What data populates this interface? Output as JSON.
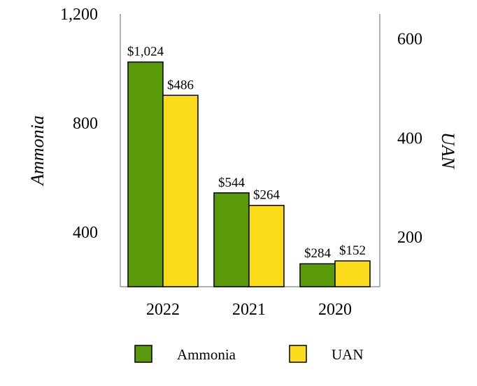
{
  "chart_data": {
    "type": "bar",
    "categories": [
      "2022",
      "2021",
      "2020"
    ],
    "series": [
      {
        "name": "Ammonia",
        "axis": "left",
        "values": [
          1024,
          544,
          284
        ],
        "labels": [
          "$1,024",
          "$544",
          "$284"
        ],
        "color": "#5a9a0a"
      },
      {
        "name": "UAN",
        "axis": "right",
        "values": [
          486,
          264,
          152
        ],
        "labels": [
          "$486",
          "$264",
          "$152"
        ],
        "color": "#fbdc1b"
      }
    ],
    "y_left": {
      "label": "Ammonia",
      "ticks": [
        400,
        800,
        1200
      ],
      "tick_labels": [
        "400",
        "800",
        "1,200"
      ],
      "range": [
        200,
        1200
      ]
    },
    "y_right": {
      "label": "UAN",
      "ticks": [
        200,
        400,
        600
      ],
      "tick_labels": [
        "200",
        "400",
        "600"
      ],
      "range": [
        100,
        650
      ]
    },
    "legend_position": "bottom",
    "grid": false
  }
}
